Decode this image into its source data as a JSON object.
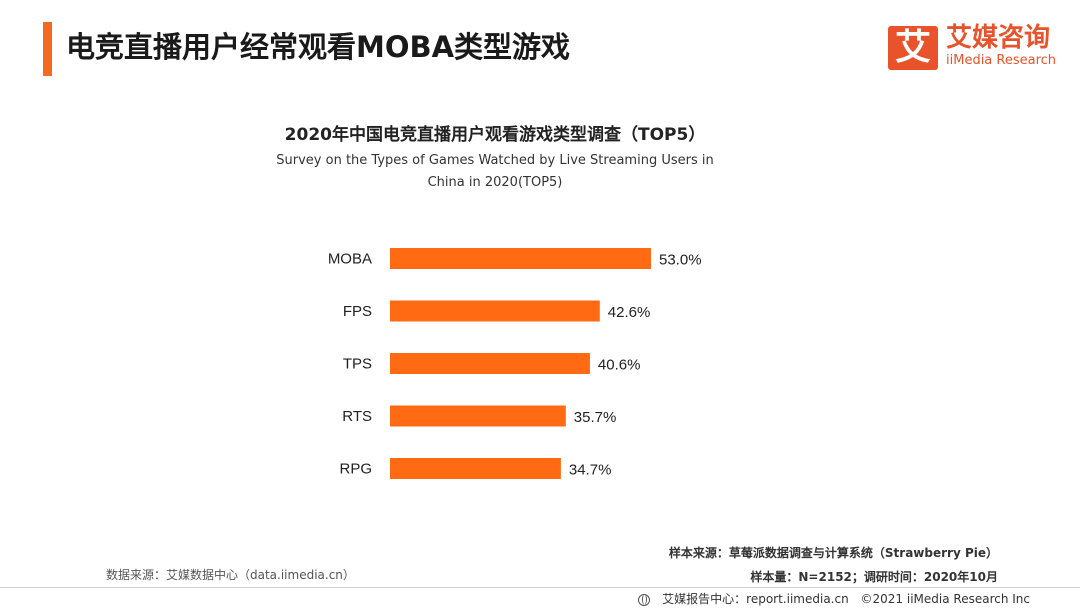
{
  "header": {
    "title": "电竞直播用户经常观看MOBA类型游戏"
  },
  "brand": {
    "mark": "艾",
    "name_cn": "艾媒咨询",
    "name_en": "iiMedia Research",
    "color": "#e8532c"
  },
  "chart_data": {
    "type": "bar",
    "orientation": "horizontal",
    "title": "2020年中国电竞直播用户观看游戏类型调查（TOP5）",
    "subtitle_lines": [
      "Survey on the Types of Games Watched by Live Streaming Users  in",
      "China in 2020(TOP5)"
    ],
    "categories": [
      "MOBA",
      "FPS",
      "TPS",
      "RTS",
      "RPG"
    ],
    "values": [
      53.0,
      42.6,
      40.6,
      35.7,
      34.7
    ],
    "value_labels": [
      "53.0%",
      "42.6%",
      "40.6%",
      "35.7%",
      "34.7%"
    ],
    "unit": "%",
    "bar_color": "#ff6a13",
    "xlim": [
      0,
      53.0
    ],
    "grid": false,
    "legend": "none"
  },
  "footer": {
    "data_source": "数据来源：艾媒数据中心（data.iimedia.cn）",
    "sample_source": "样本来源：草莓派数据调查与计算系统（Strawberry Pie）",
    "sample_info": "样本量：N=2152；调研时间：2020年10月",
    "report_center": "艾媒报告中心：report.iimedia.cn",
    "copyright": "©2021  iiMedia Research  Inc"
  },
  "accent_color": "#f26b21"
}
